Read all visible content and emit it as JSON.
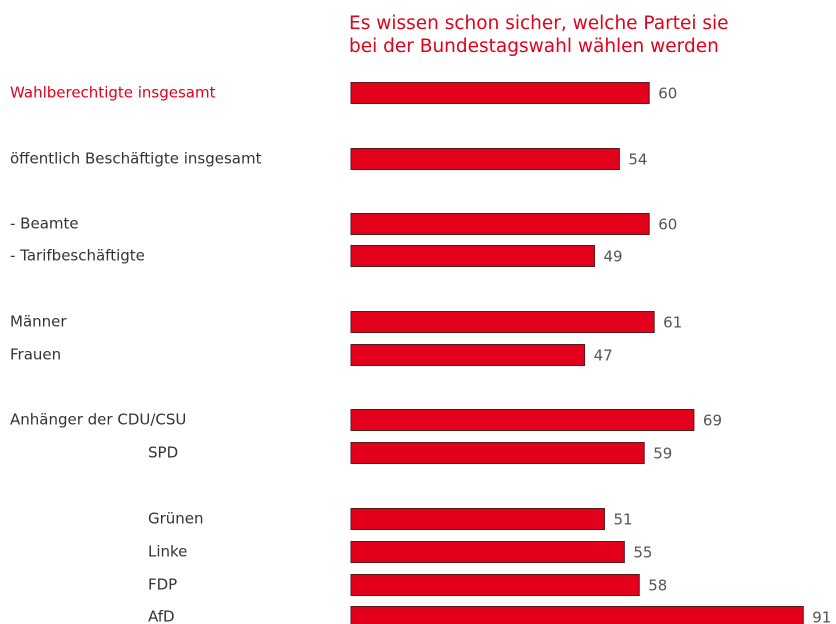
{
  "chart_data": {
    "type": "bar",
    "orientation": "horizontal",
    "title": [
      "Es wissen schon sicher, welche Partei sie",
      "bei der Bundestagswahl wählen werden"
    ],
    "categories": [
      "Wahlberechtigte insgesamt",
      "öffentlich Beschäftigte insgesamt",
      "- Beamte",
      "- Tarifbeschäftigte",
      "Männer",
      "Frauen",
      "Anhänger der CDU/CSU",
      "SPD",
      "Grünen",
      "Linke",
      "FDP",
      "AfD"
    ],
    "values": [
      60,
      54,
      60,
      49,
      61,
      47,
      69,
      59,
      51,
      55,
      58,
      91
    ],
    "color": "#e2001a"
  }
}
